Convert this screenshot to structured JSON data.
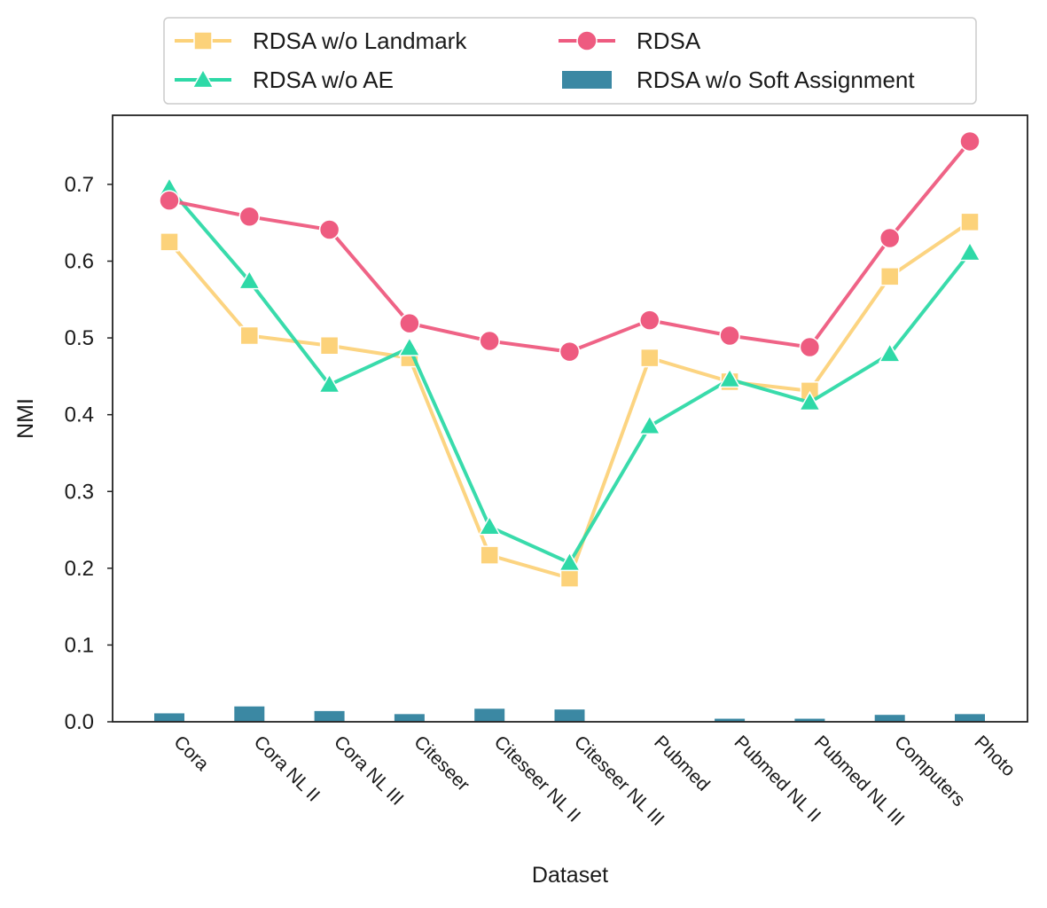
{
  "chart_data": {
    "type": "line",
    "title": "",
    "xlabel": "Dataset",
    "ylabel": "NMI",
    "ylim": [
      0.0,
      0.79
    ],
    "yticks": [
      "0.0",
      "0.1",
      "0.2",
      "0.3",
      "0.4",
      "0.5",
      "0.6",
      "0.7"
    ],
    "grid": false,
    "legend_position": "top-center",
    "categories": [
      "Cora",
      "Cora NL II",
      "Cora NL III",
      "Citeseer",
      "Citeseer NL II",
      "Citeseer NL III",
      "Pubmed",
      "Pubmed NL II",
      "Pubmed NL III",
      "Computers",
      "Photo"
    ],
    "series": [
      {
        "name": "RDSA w/o Landmark",
        "kind": "line",
        "marker": "square",
        "color": "#fcd27a",
        "values": [
          0.625,
          0.503,
          0.49,
          0.474,
          0.217,
          0.187,
          0.474,
          0.443,
          0.431,
          0.58,
          0.651
        ]
      },
      {
        "name": "RDSA w/o AE",
        "kind": "line",
        "marker": "triangle",
        "color": "#2ed9a7",
        "values": [
          0.695,
          0.574,
          0.439,
          0.487,
          0.254,
          0.207,
          0.385,
          0.446,
          0.416,
          0.479,
          0.611
        ]
      },
      {
        "name": "RDSA",
        "kind": "line",
        "marker": "circle",
        "color": "#ee5b80",
        "values": [
          0.679,
          0.658,
          0.641,
          0.519,
          0.496,
          0.482,
          0.523,
          0.503,
          0.488,
          0.63,
          0.756
        ]
      },
      {
        "name": "RDSA w/o Soft Assignment",
        "kind": "bar",
        "marker": "bar",
        "color": "#3b88a3",
        "values": [
          0.011,
          0.02,
          0.014,
          0.01,
          0.017,
          0.016,
          0.0,
          0.004,
          0.004,
          0.009,
          0.01
        ]
      }
    ]
  }
}
